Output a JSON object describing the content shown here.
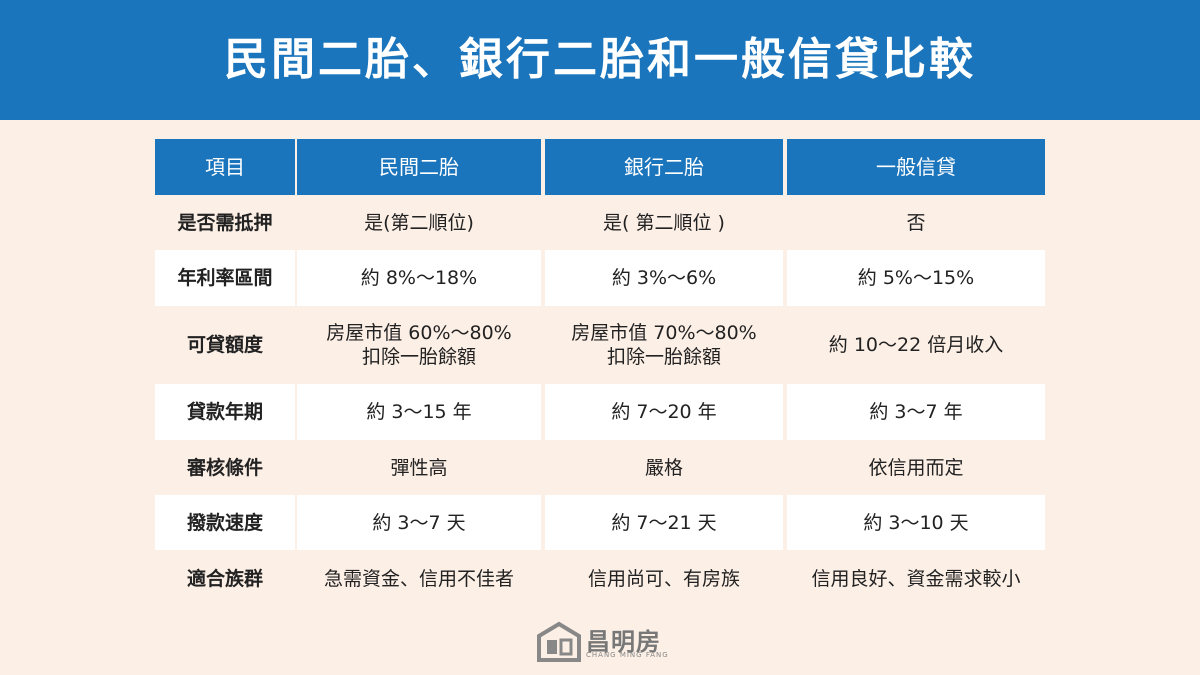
{
  "header": {
    "title": "民間二胎、銀行二胎和一般信貸比較"
  },
  "table": {
    "columns": [
      "項目",
      "民間二胎",
      "銀行二胎",
      "一般信貸"
    ],
    "rows": [
      [
        "是否需抵押",
        "是(第二順位)",
        "是( 第二順位 )",
        "否"
      ],
      [
        "年利率區間",
        "約 8%～18%",
        "約 3%～6%",
        "約 5%～15%"
      ],
      [
        "可貸額度",
        "房屋市值 60%～80%\n扣除一胎餘額",
        "房屋市值 70%～80%\n扣除一胎餘額",
        "約 10～22 倍月收入"
      ],
      [
        "貸款年期",
        "約 3～15 年",
        "約 7～20 年",
        "約 3～7 年"
      ],
      [
        "審核條件",
        "彈性高",
        "嚴格",
        "依信用而定"
      ],
      [
        "撥款速度",
        "約 3～7 天",
        "約 7～21 天",
        "約 3～10 天"
      ],
      [
        "適合族群",
        "急需資金、信用不佳者",
        "信用尚可、有房族",
        "信用良好、資金需求較小"
      ]
    ]
  },
  "footer": {
    "brand": "昌明房",
    "brand_en": "CHANG MING FANG"
  }
}
